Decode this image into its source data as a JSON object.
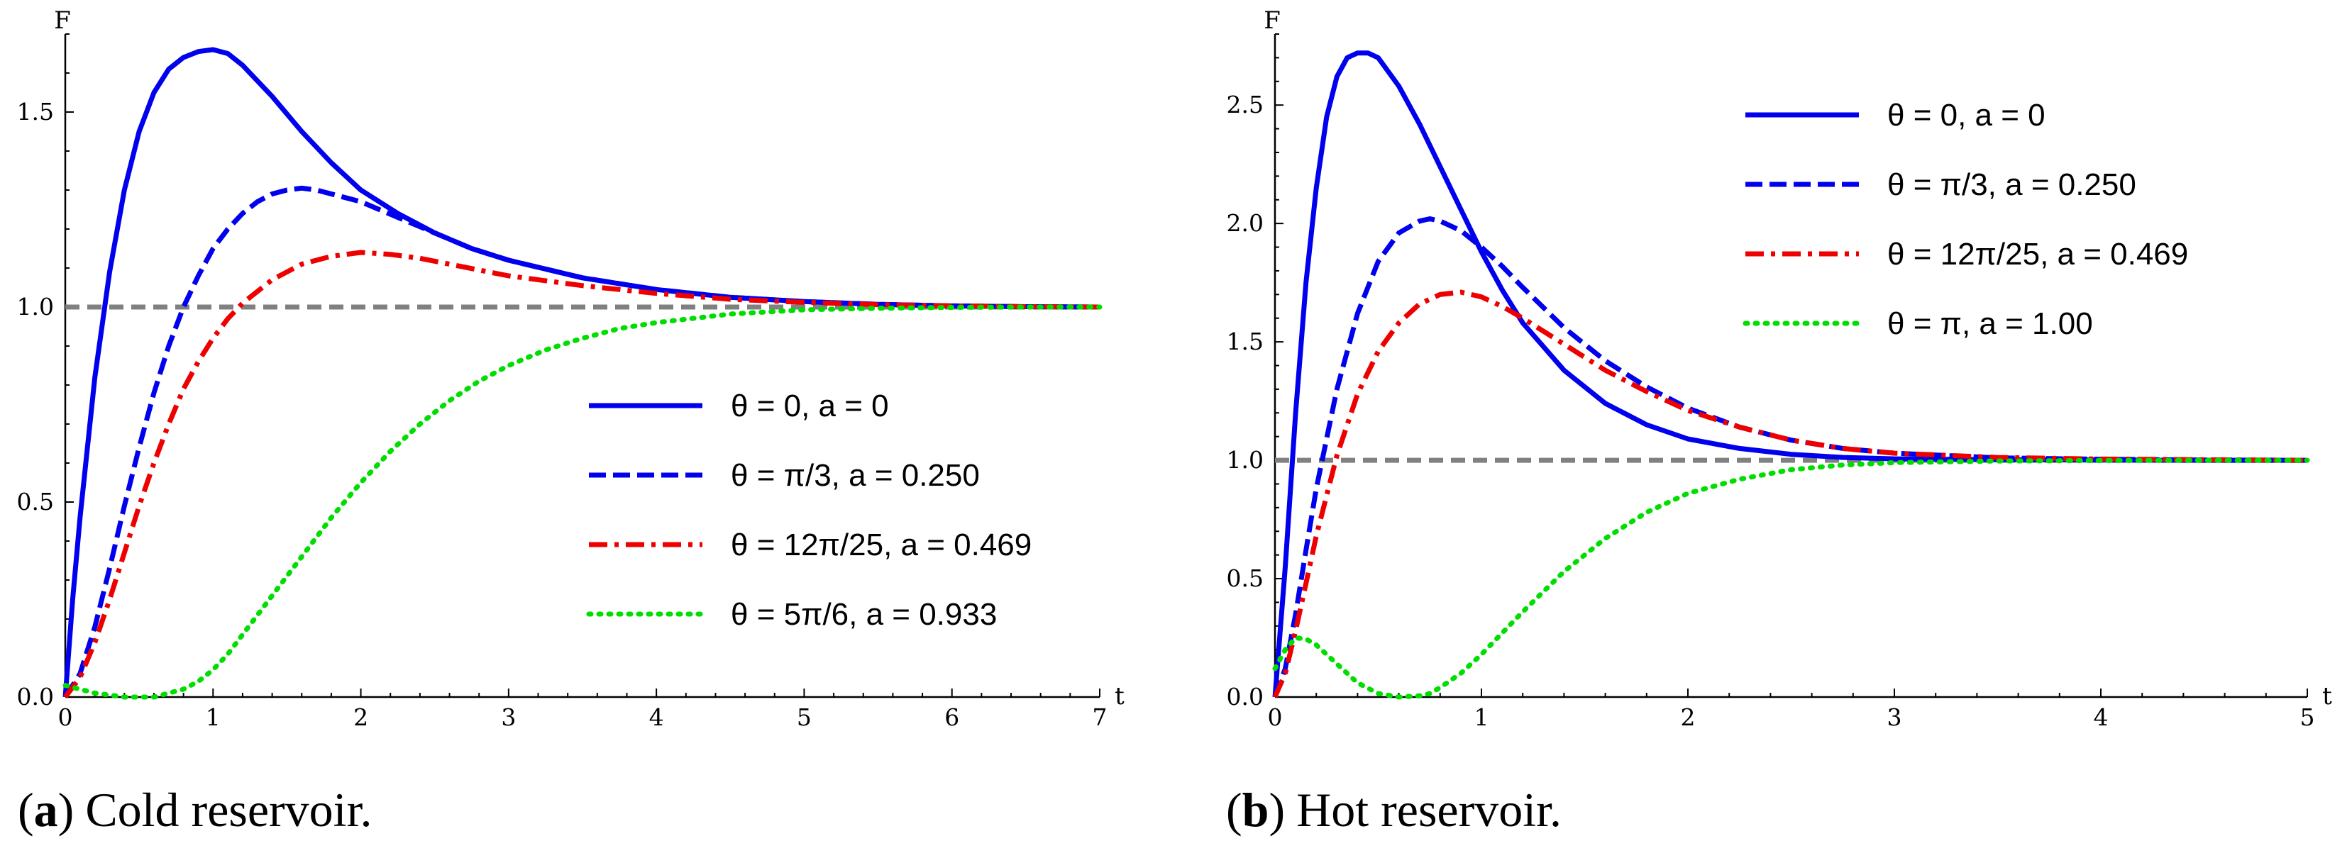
{
  "chart_data": [
    {
      "type": "line",
      "caption_letter": "a",
      "caption_text": "Cold reservoir.",
      "caption_open": "(",
      "caption_close": ")",
      "xlabel": "t",
      "ylabel": "F",
      "xlim": [
        0,
        7
      ],
      "ylim": [
        0,
        1.7
      ],
      "xticks": [
        0,
        1,
        2,
        3,
        4,
        5,
        6,
        7
      ],
      "xtick_labels": [
        "0",
        "1",
        "2",
        "3",
        "4",
        "5",
        "6",
        "7"
      ],
      "yticks": [
        0.0,
        0.5,
        1.0,
        1.5
      ],
      "ytick_labels": [
        "0.0",
        "0.5",
        "1.0",
        "1.5"
      ],
      "legend_position": "center-right",
      "reference_line": {
        "y": 1.0,
        "color": "#808080"
      },
      "series": [
        {
          "name": "θ = 0, a = 0",
          "color": "#0000ee",
          "style": "solid",
          "x": [
            0,
            0.05,
            0.1,
            0.2,
            0.3,
            0.4,
            0.5,
            0.6,
            0.7,
            0.8,
            0.9,
            1.0,
            1.1,
            1.2,
            1.4,
            1.6,
            1.8,
            2.0,
            2.25,
            2.5,
            2.75,
            3.0,
            3.5,
            4.0,
            4.5,
            5.0,
            5.5,
            6.0,
            6.5,
            7.0
          ],
          "y": [
            0,
            0.25,
            0.46,
            0.82,
            1.09,
            1.3,
            1.45,
            1.55,
            1.61,
            1.64,
            1.655,
            1.66,
            1.65,
            1.62,
            1.54,
            1.45,
            1.37,
            1.3,
            1.24,
            1.19,
            1.15,
            1.12,
            1.075,
            1.045,
            1.025,
            1.014,
            1.007,
            1.003,
            1.001,
            1.0
          ]
        },
        {
          "name": "θ = π/3, a = 0.250",
          "color": "#0000ee",
          "style": "dashed",
          "x": [
            0,
            0.1,
            0.2,
            0.3,
            0.4,
            0.5,
            0.6,
            0.7,
            0.8,
            0.9,
            1.0,
            1.1,
            1.2,
            1.3,
            1.4,
            1.5,
            1.6,
            1.7,
            1.8,
            2.0,
            2.25,
            2.5,
            2.75,
            3.0,
            3.5,
            4.0,
            4.5,
            5.0,
            5.5,
            6.0,
            6.5,
            7.0
          ],
          "y": [
            0,
            0.06,
            0.18,
            0.33,
            0.49,
            0.64,
            0.78,
            0.9,
            1.0,
            1.08,
            1.15,
            1.2,
            1.24,
            1.27,
            1.29,
            1.3,
            1.305,
            1.3,
            1.29,
            1.27,
            1.23,
            1.19,
            1.15,
            1.12,
            1.075,
            1.045,
            1.025,
            1.014,
            1.007,
            1.003,
            1.001,
            1.0
          ]
        },
        {
          "name": "θ = 12π/25, a = 0.469",
          "color": "#ee0000",
          "style": "dashdot",
          "x": [
            0,
            0.1,
            0.2,
            0.3,
            0.4,
            0.5,
            0.6,
            0.7,
            0.8,
            0.9,
            1.0,
            1.1,
            1.2,
            1.4,
            1.6,
            1.8,
            2.0,
            2.2,
            2.4,
            2.6,
            2.8,
            3.0,
            3.5,
            4.0,
            4.5,
            5.0,
            5.5,
            6.0,
            6.5,
            7.0
          ],
          "y": [
            0,
            0.05,
            0.14,
            0.25,
            0.37,
            0.49,
            0.6,
            0.7,
            0.79,
            0.86,
            0.92,
            0.97,
            1.01,
            1.07,
            1.11,
            1.13,
            1.14,
            1.135,
            1.125,
            1.11,
            1.095,
            1.08,
            1.055,
            1.035,
            1.02,
            1.012,
            1.006,
            1.003,
            1.001,
            1.0
          ]
        },
        {
          "name": "θ = 5π/6, a = 0.933",
          "color": "#00dd00",
          "style": "dotted",
          "x": [
            0,
            0.2,
            0.4,
            0.6,
            0.7,
            0.8,
            0.9,
            1.0,
            1.1,
            1.2,
            1.4,
            1.6,
            1.8,
            2.0,
            2.2,
            2.4,
            2.6,
            2.8,
            3.0,
            3.25,
            3.5,
            3.75,
            4.0,
            4.5,
            5.0,
            5.5,
            6.0,
            6.5,
            7.0
          ],
          "y": [
            0.03,
            0.01,
            0.0,
            0.0,
            0.01,
            0.02,
            0.04,
            0.07,
            0.11,
            0.16,
            0.26,
            0.36,
            0.46,
            0.55,
            0.63,
            0.7,
            0.76,
            0.81,
            0.85,
            0.89,
            0.92,
            0.945,
            0.96,
            0.982,
            0.993,
            0.997,
            0.999,
            1.0,
            1.0
          ]
        }
      ]
    },
    {
      "type": "line",
      "caption_letter": "b",
      "caption_text": "Hot reservoir.",
      "caption_open": "(",
      "caption_close": ")",
      "xlabel": "t",
      "ylabel": "F",
      "xlim": [
        0,
        5
      ],
      "ylim": [
        0,
        2.8
      ],
      "xticks": [
        0,
        1,
        2,
        3,
        4,
        5
      ],
      "xtick_labels": [
        "0",
        "1",
        "2",
        "3",
        "4",
        "5"
      ],
      "yticks": [
        0.0,
        0.5,
        1.0,
        1.5,
        2.0,
        2.5
      ],
      "ytick_labels": [
        "0.0",
        "0.5",
        "1.0",
        "1.5",
        "2.0",
        "2.5"
      ],
      "legend_position": "top-right",
      "reference_line": {
        "y": 1.0,
        "color": "#808080"
      },
      "series": [
        {
          "name": "θ = 0, a = 0",
          "color": "#0000ee",
          "style": "solid",
          "x": [
            0,
            0.05,
            0.1,
            0.15,
            0.2,
            0.25,
            0.3,
            0.35,
            0.4,
            0.45,
            0.5,
            0.6,
            0.7,
            0.8,
            0.9,
            1.0,
            1.1,
            1.2,
            1.4,
            1.6,
            1.8,
            2.0,
            2.25,
            2.5,
            2.75,
            3.0,
            3.5,
            4.0,
            4.5,
            5.0
          ],
          "y": [
            0,
            0.55,
            1.2,
            1.75,
            2.15,
            2.45,
            2.62,
            2.7,
            2.72,
            2.72,
            2.7,
            2.58,
            2.42,
            2.24,
            2.06,
            1.88,
            1.72,
            1.58,
            1.38,
            1.24,
            1.15,
            1.09,
            1.05,
            1.025,
            1.012,
            1.006,
            1.002,
            1.001,
            1.0,
            1.0
          ]
        },
        {
          "name": "θ = π/3, a = 0.250",
          "color": "#0000ee",
          "style": "dashed",
          "x": [
            0,
            0.05,
            0.1,
            0.15,
            0.2,
            0.3,
            0.4,
            0.5,
            0.6,
            0.7,
            0.75,
            0.8,
            0.9,
            1.0,
            1.1,
            1.2,
            1.4,
            1.6,
            1.8,
            2.0,
            2.25,
            2.5,
            2.75,
            3.0,
            3.5,
            4.0,
            4.5,
            5.0
          ],
          "y": [
            0,
            0.12,
            0.35,
            0.62,
            0.88,
            1.3,
            1.62,
            1.84,
            1.96,
            2.01,
            2.02,
            2.01,
            1.97,
            1.9,
            1.82,
            1.73,
            1.56,
            1.42,
            1.31,
            1.22,
            1.14,
            1.085,
            1.05,
            1.03,
            1.01,
            1.004,
            1.001,
            1.0
          ]
        },
        {
          "name": "θ = 12π/25, a = 0.469",
          "color": "#ee0000",
          "style": "dashdot",
          "x": [
            0,
            0.05,
            0.1,
            0.15,
            0.2,
            0.3,
            0.4,
            0.5,
            0.6,
            0.7,
            0.8,
            0.9,
            1.0,
            1.1,
            1.2,
            1.4,
            1.6,
            1.8,
            2.0,
            2.25,
            2.5,
            2.75,
            3.0,
            3.5,
            4.0,
            4.5,
            5.0
          ],
          "y": [
            0,
            0.1,
            0.28,
            0.48,
            0.68,
            1.02,
            1.28,
            1.46,
            1.58,
            1.66,
            1.7,
            1.71,
            1.69,
            1.65,
            1.6,
            1.49,
            1.38,
            1.29,
            1.21,
            1.14,
            1.085,
            1.05,
            1.03,
            1.012,
            1.005,
            1.002,
            1.0
          ]
        },
        {
          "name": "θ = π, a = 1.00",
          "color": "#00dd00",
          "style": "dotted",
          "x": [
            0,
            0.05,
            0.1,
            0.15,
            0.2,
            0.3,
            0.4,
            0.5,
            0.6,
            0.7,
            0.75,
            0.8,
            0.9,
            1.0,
            1.1,
            1.2,
            1.4,
            1.6,
            1.8,
            2.0,
            2.25,
            2.5,
            2.75,
            3.0,
            3.5,
            4.0,
            4.5,
            5.0
          ],
          "y": [
            0.12,
            0.2,
            0.25,
            0.245,
            0.22,
            0.14,
            0.06,
            0.015,
            0.0,
            0.005,
            0.015,
            0.04,
            0.1,
            0.18,
            0.27,
            0.36,
            0.53,
            0.67,
            0.78,
            0.86,
            0.92,
            0.96,
            0.98,
            0.99,
            0.997,
            0.999,
            1.0,
            1.0
          ]
        }
      ]
    }
  ]
}
